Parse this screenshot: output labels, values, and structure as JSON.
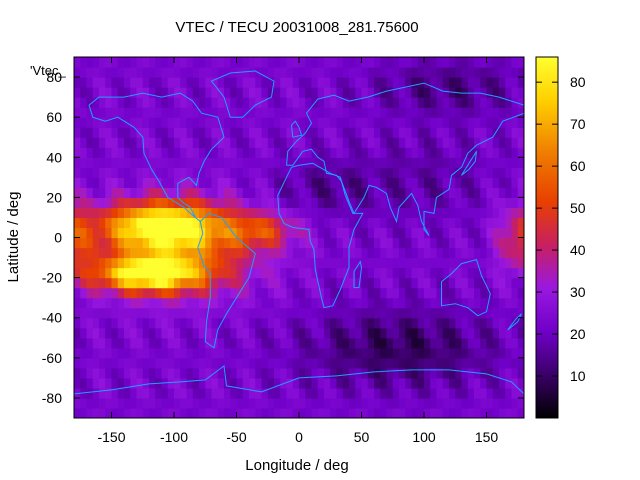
{
  "chart_data": {
    "type": "heatmap",
    "title": "VTEC / TECU 20031008_281.75600",
    "xlabel": "Longitude / deg",
    "ylabel": "Latitude / deg",
    "series_key": "'Vtec_",
    "xlim": [
      -180,
      180
    ],
    "ylim": [
      -90,
      90
    ],
    "x_ticks": [
      -150,
      -100,
      -50,
      0,
      50,
      100,
      150
    ],
    "y_ticks": [
      -80,
      -60,
      -40,
      -20,
      0,
      20,
      40,
      60,
      80
    ],
    "colorbar": {
      "range": [
        0,
        86
      ],
      "ticks": [
        10,
        20,
        30,
        40,
        50,
        60,
        70,
        80
      ]
    },
    "grid": false,
    "features": [
      {
        "name": "equatorial-anomaly-west-north",
        "lon": -110,
        "lat": 6,
        "vtec": 80
      },
      {
        "name": "equatorial-anomaly-west-south",
        "lon": -120,
        "lat": -18,
        "vtec": 82
      },
      {
        "name": "equatorial-anomaly-east-edge",
        "lon": 180,
        "lat": 0,
        "vtec": 45
      },
      {
        "name": "antarctic-minimum",
        "lon": 80,
        "lat": -55,
        "vtec": 5
      }
    ]
  }
}
